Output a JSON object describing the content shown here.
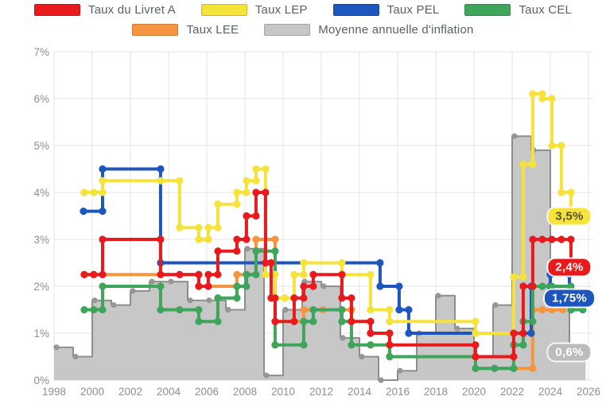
{
  "legend": {
    "rows": [
      [
        {
          "id": "livret-a",
          "label": "Taux du Livret A",
          "color": "#e81a1d"
        },
        {
          "id": "lep",
          "label": "Taux LEP",
          "color": "#f5e33b"
        },
        {
          "id": "pel",
          "label": "Taux PEL",
          "color": "#1d56bc"
        },
        {
          "id": "cel",
          "label": "Taux CEL",
          "color": "#3ea55b"
        }
      ],
      [
        {
          "id": "lee",
          "label": "Taux LEE",
          "color": "#f6953f"
        },
        {
          "id": "inflation",
          "label": "Moyenne annuelle d'inflation",
          "color": "#c6c6c6"
        }
      ]
    ]
  },
  "chart_data": {
    "type": "line",
    "subtype": "step-after lines over step area (bars)",
    "x_axis": {
      "min": 1998,
      "max": 2026,
      "tick_labels": [
        "1998",
        "2000",
        "2002",
        "2004",
        "2006",
        "2008",
        "2010",
        "2012",
        "2014",
        "2016",
        "2018",
        "2020",
        "2022",
        "2024",
        "2026"
      ],
      "tick_years": [
        1998,
        2000,
        2002,
        2004,
        2006,
        2008,
        2010,
        2012,
        2014,
        2016,
        2018,
        2020,
        2022,
        2024,
        2026
      ]
    },
    "y_axis": {
      "min": 0,
      "max": 7,
      "tick_labels": [
        "0%",
        "1%",
        "2%",
        "3%",
        "4%",
        "5%",
        "6%",
        "7%"
      ],
      "tick_values": [
        0,
        1,
        2,
        3,
        4,
        5,
        6,
        7
      ]
    },
    "grid": true,
    "series": [
      {
        "name": "Taux LEE",
        "color": "#f6953f",
        "end": 2024.65,
        "points": [
          [
            1999.58,
            2.25
          ],
          [
            2005.58,
            2.0
          ],
          [
            2007.58,
            2.25
          ],
          [
            2008.58,
            3.0
          ],
          [
            2009.58,
            1.25
          ],
          [
            2011.08,
            1.5
          ],
          [
            2013.58,
            1.25
          ],
          [
            2014.58,
            1.0
          ],
          [
            2015.58,
            0.5
          ],
          [
            2020.08,
            0.25
          ],
          [
            2023.08,
            1.5
          ]
        ],
        "extra_dots": [
          [
            2000.08,
            2.25
          ],
          [
            2004.58,
            2.25
          ],
          [
            2012.08,
            1.5
          ],
          [
            2023.58,
            1.5
          ],
          [
            2024.08,
            1.5
          ]
        ]
      },
      {
        "name": "Taux PEL",
        "color": "#1d56bc",
        "end": 2025.7,
        "points": [
          [
            1999.54,
            3.6
          ],
          [
            2000.54,
            4.5
          ],
          [
            2003.58,
            2.5
          ],
          [
            2015.08,
            2.0
          ],
          [
            2016.08,
            1.5
          ],
          [
            2016.58,
            1.0
          ],
          [
            2023.0,
            2.0
          ],
          [
            2024.0,
            2.25
          ],
          [
            2025.0,
            1.75
          ]
        ],
        "extra_dots": []
      },
      {
        "name": "Taux CEL",
        "color": "#3ea55b",
        "end": 2025.7,
        "points": [
          [
            1999.58,
            1.5
          ],
          [
            2000.54,
            2.0
          ],
          [
            2003.58,
            1.5
          ],
          [
            2005.58,
            1.25
          ],
          [
            2006.58,
            1.75
          ],
          [
            2007.58,
            2.0
          ],
          [
            2008.08,
            2.25
          ],
          [
            2008.58,
            2.75
          ],
          [
            2009.58,
            0.75
          ],
          [
            2011.08,
            1.25
          ],
          [
            2011.58,
            1.5
          ],
          [
            2013.08,
            1.25
          ],
          [
            2013.58,
            0.75
          ],
          [
            2015.58,
            0.5
          ],
          [
            2020.08,
            0.25
          ],
          [
            2022.08,
            0.75
          ],
          [
            2022.58,
            1.25
          ],
          [
            2023.08,
            2.0
          ],
          [
            2025.08,
            1.5
          ]
        ],
        "extra_dots": [
          [
            2000.08,
            1.5
          ],
          [
            2004.58,
            1.5
          ],
          [
            2014.58,
            0.75
          ],
          [
            2021.08,
            0.25
          ],
          [
            2023.58,
            2.0
          ],
          [
            2024.08,
            2.0
          ]
        ]
      },
      {
        "name": "Taux LEP",
        "color": "#f5e33b",
        "end": 2025.7,
        "points": [
          [
            1999.58,
            4.0
          ],
          [
            2000.54,
            4.25
          ],
          [
            2004.58,
            3.25
          ],
          [
            2005.58,
            3.0
          ],
          [
            2006.08,
            3.25
          ],
          [
            2006.58,
            3.75
          ],
          [
            2007.58,
            4.0
          ],
          [
            2008.08,
            4.25
          ],
          [
            2008.58,
            4.5
          ],
          [
            2009.08,
            2.25
          ],
          [
            2009.58,
            1.75
          ],
          [
            2010.58,
            2.25
          ],
          [
            2011.08,
            2.5
          ],
          [
            2013.08,
            2.25
          ],
          [
            2014.58,
            1.5
          ],
          [
            2015.58,
            1.25
          ],
          [
            2020.08,
            1.0
          ],
          [
            2022.08,
            2.2
          ],
          [
            2022.58,
            4.6
          ],
          [
            2023.08,
            6.1
          ],
          [
            2023.58,
            6.0
          ],
          [
            2024.08,
            5.0
          ],
          [
            2024.58,
            4.0
          ],
          [
            2025.08,
            3.5
          ]
        ],
        "extra_dots": [
          [
            2000.08,
            4.0
          ],
          [
            2003.58,
            4.25
          ],
          [
            2010.08,
            1.75
          ]
        ]
      },
      {
        "name": "Taux du Livret A",
        "color": "#e81a1d",
        "end": 2025.7,
        "points": [
          [
            1999.58,
            2.25
          ],
          [
            2000.54,
            3.0
          ],
          [
            2003.58,
            2.25
          ],
          [
            2005.58,
            2.0
          ],
          [
            2006.08,
            2.25
          ],
          [
            2006.58,
            2.75
          ],
          [
            2007.58,
            3.0
          ],
          [
            2008.08,
            3.5
          ],
          [
            2008.58,
            4.0
          ],
          [
            2009.08,
            2.5
          ],
          [
            2009.37,
            1.75
          ],
          [
            2009.58,
            1.25
          ],
          [
            2010.58,
            1.75
          ],
          [
            2011.08,
            2.0
          ],
          [
            2011.58,
            2.25
          ],
          [
            2013.08,
            1.75
          ],
          [
            2013.58,
            1.25
          ],
          [
            2014.58,
            1.0
          ],
          [
            2015.58,
            0.75
          ],
          [
            2020.08,
            0.5
          ],
          [
            2022.08,
            1.0
          ],
          [
            2022.58,
            2.0
          ],
          [
            2023.08,
            3.0
          ],
          [
            2025.08,
            2.4
          ]
        ],
        "extra_dots": [
          [
            2000.08,
            2.25
          ],
          [
            2004.58,
            2.25
          ],
          [
            2023.58,
            3.0
          ],
          [
            2024.08,
            3.0
          ],
          [
            2024.58,
            3.0
          ]
        ]
      }
    ],
    "inflation": {
      "name": "Moyenne annuelle d'inflation",
      "fill": "#c7c7c7",
      "line": "#8d8d8d",
      "dot": "#969696",
      "end": 2025.85,
      "years": [
        1998,
        1999,
        2000,
        2001,
        2002,
        2003,
        2004,
        2005,
        2006,
        2007,
        2008,
        2009,
        2010,
        2011,
        2012,
        2013,
        2014,
        2015,
        2016,
        2017,
        2018,
        2019,
        2020,
        2021,
        2022,
        2023,
        2024,
        2025
      ],
      "values": [
        0.7,
        0.5,
        1.7,
        1.6,
        1.9,
        2.1,
        2.1,
        1.7,
        1.7,
        1.5,
        2.8,
        0.1,
        1.5,
        2.1,
        2.0,
        0.9,
        0.5,
        0.0,
        0.2,
        1.0,
        1.8,
        1.1,
        0.5,
        1.6,
        5.2,
        4.9,
        2.0,
        0.6
      ]
    },
    "callouts": [
      {
        "id": "lep-final",
        "text": "3,5%",
        "value": 3.5,
        "bg": "#f6e33c",
        "fg": "#55502e"
      },
      {
        "id": "livret-a-final",
        "text": "2,4%",
        "value": 2.4,
        "bg": "#e81a1d",
        "fg": "#ffffff"
      },
      {
        "id": "pel-final",
        "text": "1,75%",
        "value": 1.75,
        "bg": "#1d56bc",
        "fg": "#ffffff"
      },
      {
        "id": "inflation-final",
        "text": "0,6%",
        "value": 0.6,
        "bg": "#bcbcbc",
        "fg": "#ffffff"
      }
    ],
    "style": {
      "grid_color": "#e4e4e4",
      "tick_color": "#8e8e8e",
      "line_width": 4,
      "dot_radius": 4.6
    }
  }
}
